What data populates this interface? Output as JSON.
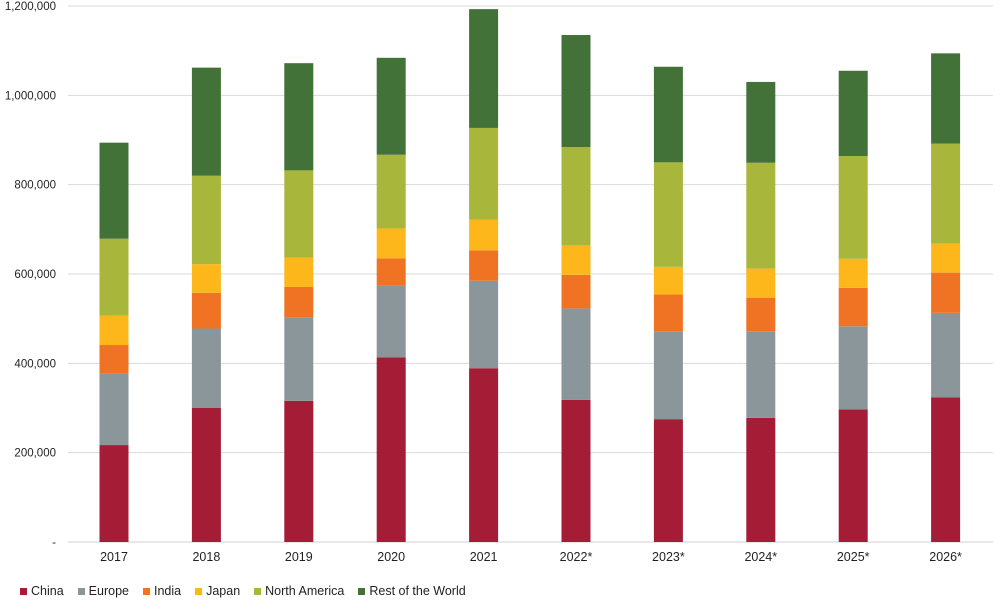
{
  "chart_data": {
    "type": "bar",
    "stacked": true,
    "title": "",
    "xlabel": "",
    "ylabel": "",
    "ylim": [
      0,
      1200000
    ],
    "yticks": [
      0,
      200000,
      400000,
      600000,
      800000,
      1000000,
      1200000
    ],
    "ytick_labels": [
      "-",
      "200,000",
      "400,000",
      "600,000",
      "800,000",
      "1,000,000",
      "1,200,000"
    ],
    "grid": true,
    "legend_position": "bottom-left",
    "categories": [
      "2017",
      "2018",
      "2019",
      "2020",
      "2021",
      "2022*",
      "2023*",
      "2024*",
      "2025*",
      "2026*"
    ],
    "series": [
      {
        "name": "China",
        "color": "#A51C36",
        "values": [
          217000,
          300000,
          316000,
          413000,
          389000,
          318000,
          275000,
          278000,
          297000,
          324000
        ]
      },
      {
        "name": "Europe",
        "color": "#8A9699",
        "values": [
          160000,
          178000,
          187000,
          161000,
          196000,
          205000,
          197000,
          194000,
          186000,
          189000
        ]
      },
      {
        "name": "India",
        "color": "#F07324",
        "values": [
          64000,
          80000,
          68000,
          61000,
          68000,
          75000,
          82000,
          75000,
          86000,
          90000
        ]
      },
      {
        "name": "Japan",
        "color": "#FDB71A",
        "values": [
          66000,
          64000,
          66000,
          67000,
          69000,
          66000,
          62000,
          65000,
          65000,
          65000
        ]
      },
      {
        "name": "North America",
        "color": "#A8B73B",
        "values": [
          172000,
          198000,
          195000,
          165000,
          205000,
          220000,
          234000,
          237000,
          230000,
          224000
        ]
      },
      {
        "name": "Rest of the World",
        "color": "#437238",
        "values": [
          215000,
          242000,
          240000,
          217000,
          266000,
          251000,
          214000,
          181000,
          191000,
          202000
        ]
      }
    ]
  }
}
